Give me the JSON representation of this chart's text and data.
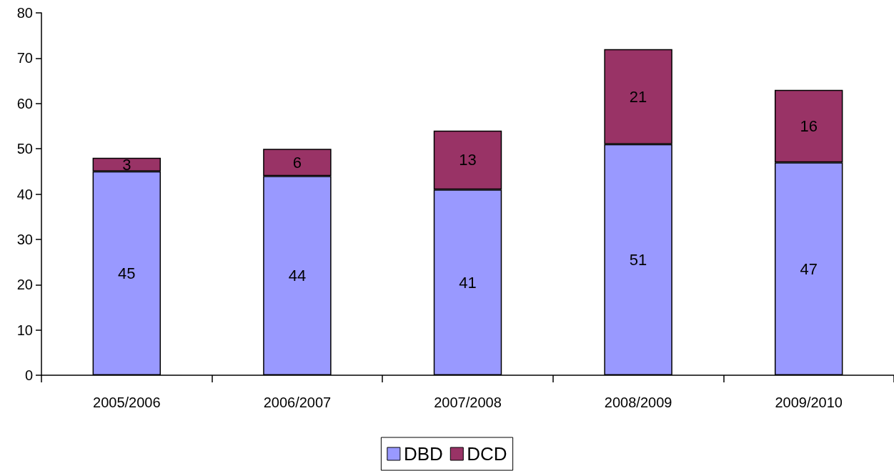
{
  "chart_data": {
    "type": "bar",
    "stacked": true,
    "categories": [
      "2005/2006",
      "2006/2007",
      "2007/2008",
      "2008/2009",
      "2009/2010"
    ],
    "series": [
      {
        "name": "DBD",
        "color": "#9999ff",
        "values": [
          45,
          44,
          41,
          51,
          47
        ]
      },
      {
        "name": "DCD",
        "color": "#993366",
        "values": [
          3,
          6,
          13,
          21,
          16
        ]
      }
    ],
    "ylim": [
      0,
      80
    ],
    "yticks": [
      0,
      10,
      20,
      30,
      40,
      50,
      60,
      70,
      80
    ],
    "grid": false,
    "legend": "bottom",
    "data_labels": true
  }
}
